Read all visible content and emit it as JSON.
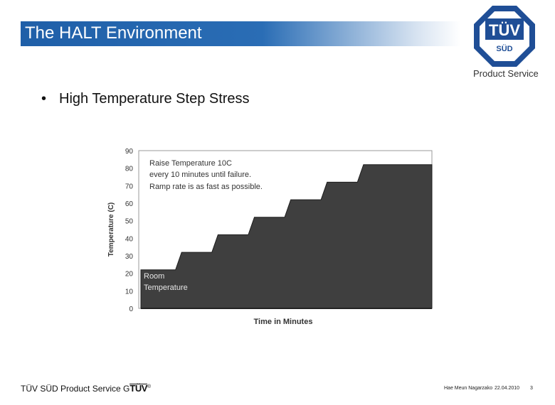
{
  "slide": {
    "title": "The HALT Environment",
    "bullet": "High Temperature Step Stress"
  },
  "logo": {
    "mark_top": "TÜV",
    "mark_bottom": "SÜD",
    "caption": "Product Service"
  },
  "chart_data": {
    "type": "area",
    "x": [
      0,
      10,
      10,
      20,
      20,
      30,
      30,
      40,
      40,
      50,
      50,
      60,
      60,
      70,
      70,
      80
    ],
    "values": [
      22,
      22,
      32,
      32,
      42,
      42,
      52,
      52,
      62,
      62,
      72,
      72,
      82,
      82,
      82,
      82
    ],
    "ylim": [
      0,
      90
    ],
    "yticks": [
      "90",
      "80",
      "70",
      "60",
      "50",
      "40",
      "30",
      "20",
      "10",
      "0"
    ],
    "ylabel": "Temperature (C)",
    "xlabel": "Time in Minutes",
    "annotation": [
      "Raise Temperature 10C",
      "every 10 minutes until failure.",
      "Ramp rate is as fast as possible."
    ],
    "room_label": [
      "Room",
      "Temperature"
    ],
    "colors": {
      "fill": "#3f3f3f",
      "edge": "#1e1e1e",
      "text": "#333333",
      "room_text": "#e6e6e6"
    }
  },
  "footer": {
    "company": "TÜV SÜD Product Service G",
    "mark": "TÜV",
    "registered": "®",
    "author": "Hae Meun Nagarzako",
    "date": "22.04.2010",
    "page": "3"
  },
  "colors": {
    "title_bar": "#1f5fa8",
    "logo_blue": "#1f4e96"
  }
}
